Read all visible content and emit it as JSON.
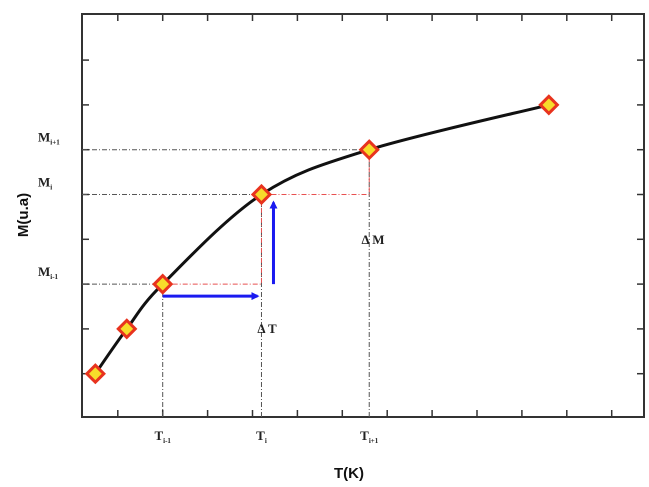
{
  "chart_data": {
    "type": "line",
    "xlabel": "T(K)",
    "ylabel": "M(u.a)",
    "xlim": [
      0,
      10
    ],
    "ylim": [
      0,
      10
    ],
    "series": [
      {
        "points": [
          {
            "x": 1.5,
            "y": 1.0
          },
          {
            "x": 2.2,
            "y": 2.0
          },
          {
            "x": 3.0,
            "y": 3.0
          },
          {
            "x": 5.2,
            "y": 5.0
          },
          {
            "x": 7.6,
            "y": 6.0
          },
          {
            "x": 11.6,
            "y": 7.0
          }
        ]
      }
    ],
    "x_tick_labels": [
      {
        "main": "T",
        "sub": "i-1",
        "x": 3.0
      },
      {
        "main": "T",
        "sub": "i",
        "x": 5.2
      },
      {
        "main": "T",
        "sub": "i+1",
        "x": 7.6
      }
    ],
    "y_tick_labels": [
      {
        "main": "M",
        "sub": "i-1",
        "y": 3.0
      },
      {
        "main": "M",
        "sub": "i",
        "y": 5.0
      },
      {
        "main": "M",
        "sub": "i+1",
        "y": 6.0
      }
    ],
    "annotations": {
      "delta_t": "Δ T",
      "delta_m": "Δ M"
    },
    "colors": {
      "curve": "#111111",
      "marker_fill": "#f7dc2a",
      "marker_edge": "#e8331e",
      "guide_lines": "#555555",
      "step_lines": "#e85050",
      "arrows": "#1a1af0"
    }
  }
}
